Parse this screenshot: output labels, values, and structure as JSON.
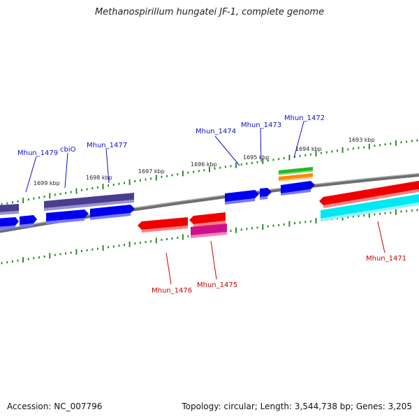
{
  "title": "Methanospirillum hungatei JF-1, complete genome",
  "footer": {
    "accession": "Accession: NC_007796",
    "topology": "Topology: circular; Length: 3,544,738 bp; Genes: 3,205"
  },
  "kbp_labels": {
    "k1693": "1693 kbp",
    "k1694": "1694 kbp",
    "k1695": "1695 kbp",
    "k1696": "1696 kbp",
    "k1697": "1697 kbp",
    "k1698": "1698 kbp",
    "k1699": "1699 kbp"
  },
  "gene_labels": {
    "mhun_1479": "Mhun_1479",
    "cbio": "cbiO",
    "mhun_1477": "Mhun_1477",
    "mhun_1476": "Mhun_1476",
    "mhun_1475": "Mhun_1475",
    "mhun_1474": "Mhun_1474",
    "mhun_1473": "Mhun_1473",
    "mhun_1472": "Mhun_1472",
    "mhun_1471": "Mhun_1471"
  },
  "colors": {
    "forward_label": "#1010c8",
    "reverse_label": "#c80000",
    "forward_gene": "#0000ee",
    "reverse_gene": "#ee0000",
    "cog_purple": "#4a3d8f",
    "magenta": "#d0108a",
    "cyan": "#00e8f0",
    "green": "#22bb22",
    "orange": "#ff8800",
    "backbone": "#888888",
    "ticks": "#2a8a2a"
  }
}
